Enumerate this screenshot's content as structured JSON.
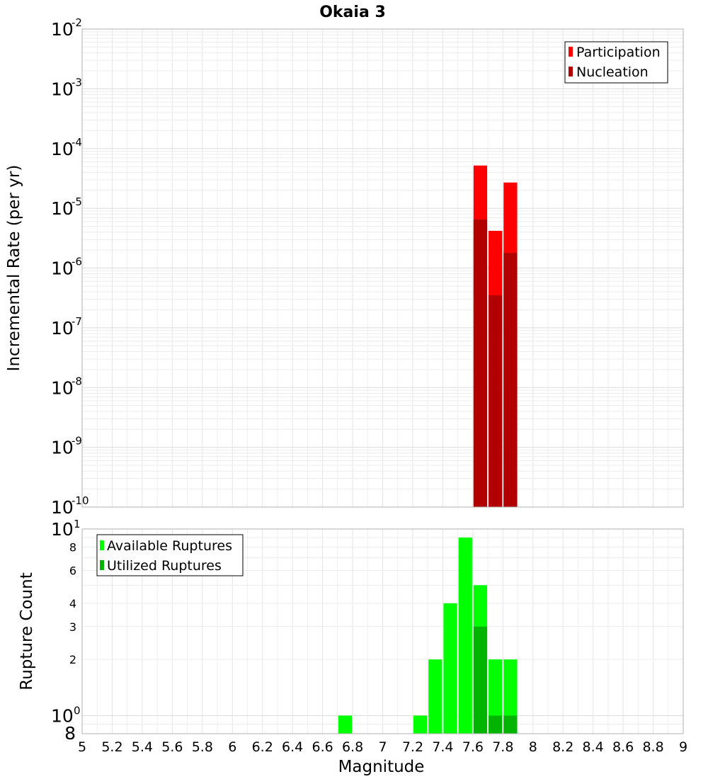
{
  "chart_data": [
    {
      "type": "bar",
      "panel": "top",
      "title": "Okaia 3",
      "ylabel": "Incremental Rate (per yr)",
      "xlim": [
        5,
        9
      ],
      "ylim": [
        1e-10,
        0.01
      ],
      "yscale": "log",
      "grid": true,
      "legend_position": "top-right",
      "bin_width": 0.1,
      "y_ticks": [
        {
          "base": "10",
          "exp": "-2",
          "value": 0.01
        },
        {
          "base": "10",
          "exp": "-3",
          "value": 0.001
        },
        {
          "base": "10",
          "exp": "-4",
          "value": 0.0001
        },
        {
          "base": "10",
          "exp": "-5",
          "value": 1e-05
        },
        {
          "base": "10",
          "exp": "-6",
          "value": 1e-06
        },
        {
          "base": "10",
          "exp": "-7",
          "value": 1e-07
        },
        {
          "base": "10",
          "exp": "-8",
          "value": 1e-08
        },
        {
          "base": "10",
          "exp": "-9",
          "value": 1e-09
        },
        {
          "base": "10",
          "exp": "-10",
          "value": 1e-10
        }
      ],
      "series": [
        {
          "name": "Participation",
          "color": "#ff0000",
          "x": [
            7.65,
            7.75,
            7.85
          ],
          "values": [
            5.2e-05,
            4.2e-06,
            2.7e-05
          ]
        },
        {
          "name": "Nucleation",
          "color": "#b20000",
          "x": [
            7.65,
            7.75,
            7.85
          ],
          "values": [
            6.5e-06,
            3.5e-07,
            1.8e-06
          ]
        }
      ]
    },
    {
      "type": "bar",
      "panel": "bottom",
      "xlabel": "Magnitude",
      "ylabel": "Rupture Count",
      "xlim": [
        5,
        9
      ],
      "ylim": [
        0.8,
        10
      ],
      "yscale": "log",
      "grid": true,
      "legend_position": "top-left",
      "bin_width": 0.1,
      "x_ticks": [
        "5",
        "5.2",
        "5.4",
        "5.6",
        "5.8",
        "6",
        "6.2",
        "6.4",
        "6.6",
        "6.8",
        "7",
        "7.2",
        "7.4",
        "7.6",
        "7.8",
        "8",
        "8.2",
        "8.4",
        "8.6",
        "8.8",
        "9"
      ],
      "y_ticks_major": [
        {
          "base": "10",
          "exp": "1",
          "value": 10
        },
        {
          "base": "10",
          "exp": "0",
          "value": 1
        }
      ],
      "y_ticks_minor": [
        {
          "label": "8",
          "value": 8
        },
        {
          "label": "6",
          "value": 6
        },
        {
          "label": "4",
          "value": 4
        },
        {
          "label": "3",
          "value": 3
        },
        {
          "label": "2",
          "value": 2
        }
      ],
      "y_tick_bottom": {
        "label": "8",
        "value": 0.8
      },
      "series": [
        {
          "name": "Available Ruptures",
          "color": "#00ff00",
          "x": [
            6.75,
            7.25,
            7.35,
            7.45,
            7.55,
            7.65,
            7.75,
            7.85
          ],
          "values": [
            1,
            1,
            2,
            4,
            9,
            5,
            2,
            2
          ]
        },
        {
          "name": "Utilized Ruptures",
          "color": "#00b400",
          "x": [
            7.65,
            7.75,
            7.85
          ],
          "values": [
            3,
            1,
            1
          ]
        }
      ]
    }
  ]
}
